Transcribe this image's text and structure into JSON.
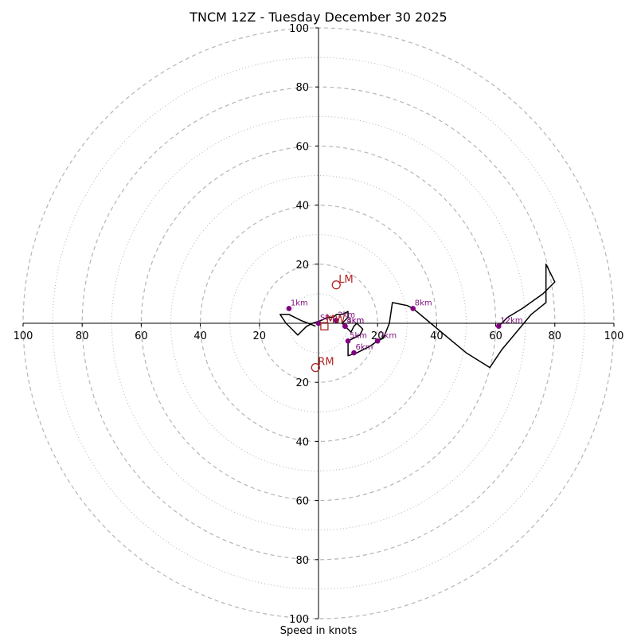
{
  "chart_data": {
    "type": "hodograph",
    "title": "TNCM 12Z - Tuesday December 30 2025",
    "xlabel": "Speed in knots",
    "units": "knots",
    "range": [
      -100,
      100
    ],
    "rings_dashed": [
      20,
      40,
      60,
      80,
      100
    ],
    "rings_dotted": [
      10,
      30,
      50,
      70,
      90
    ],
    "x_ticks": [
      "100",
      "80",
      "60",
      "40",
      "20",
      "20",
      "40",
      "60",
      "80",
      "100"
    ],
    "x_tick_values": [
      -100,
      -80,
      -60,
      -40,
      -20,
      20,
      40,
      60,
      80,
      100
    ],
    "y_ticks": [
      "100",
      "80",
      "60",
      "40",
      "20",
      "20",
      "40",
      "60",
      "80",
      "100"
    ],
    "y_tick_values": [
      100,
      80,
      60,
      40,
      20,
      -20,
      -40,
      -60,
      -80,
      -100
    ],
    "trace": [
      [
        -1,
        -1
      ],
      [
        -6,
        1
      ],
      [
        -10,
        3
      ],
      [
        -13,
        3
      ],
      [
        -11,
        0
      ],
      [
        -9,
        -2
      ],
      [
        -7,
        -4
      ],
      [
        -6,
        -3
      ],
      [
        -4,
        -1
      ],
      [
        -2,
        0
      ],
      [
        1,
        1
      ],
      [
        3,
        2
      ],
      [
        5,
        2
      ],
      [
        6,
        3
      ],
      [
        8,
        3
      ],
      [
        10,
        4
      ],
      [
        10,
        2
      ],
      [
        8,
        0
      ],
      [
        9,
        -1
      ],
      [
        10,
        -2
      ],
      [
        11,
        -3
      ],
      [
        12,
        -1
      ],
      [
        13,
        0
      ],
      [
        15,
        -2
      ],
      [
        14,
        -4
      ],
      [
        12,
        -5
      ],
      [
        10,
        -6
      ],
      [
        10,
        -11
      ],
      [
        13,
        -10
      ],
      [
        17,
        -8
      ],
      [
        20,
        -6
      ],
      [
        22,
        -5
      ],
      [
        24,
        0
      ],
      [
        25,
        7
      ],
      [
        30,
        6
      ],
      [
        32,
        5
      ],
      [
        38,
        0
      ],
      [
        44,
        -5
      ],
      [
        50,
        -10
      ],
      [
        58,
        -15
      ],
      [
        62,
        -9
      ],
      [
        67,
        -3
      ],
      [
        72,
        3
      ],
      [
        77,
        7
      ],
      [
        77,
        20
      ],
      [
        80,
        14
      ],
      [
        78,
        12
      ],
      [
        76,
        10
      ],
      [
        69,
        5
      ],
      [
        64,
        2
      ],
      [
        61,
        -1
      ]
    ],
    "height_points": [
      {
        "label": "Sfc",
        "u": 0,
        "v": 0
      },
      {
        "label": "1km",
        "u": -10,
        "v": 5
      },
      {
        "label": "2km",
        "u": 6,
        "v": 1
      },
      {
        "label": "3km",
        "u": 9,
        "v": -1
      },
      {
        "label": "4km",
        "u": 9,
        "v": -1
      },
      {
        "label": "5km",
        "u": 10,
        "v": -6
      },
      {
        "label": "6km",
        "u": 12,
        "v": -10
      },
      {
        "label": "7km",
        "u": 20,
        "v": -6
      },
      {
        "label": "8km",
        "u": 32,
        "v": 5
      },
      {
        "label": "12km",
        "u": 61,
        "v": -1
      }
    ],
    "motion_points": [
      {
        "label": "LM",
        "u": 6,
        "v": 13,
        "marker": "circle"
      },
      {
        "label": "RM",
        "u": -1,
        "v": -15,
        "marker": "circle"
      },
      {
        "label": "MW",
        "u": 2,
        "v": -1,
        "marker": "square"
      }
    ],
    "colors": {
      "trace": "#000000",
      "height": "#800080",
      "motion": "#b22222",
      "ring": "#b5b5b5"
    }
  }
}
